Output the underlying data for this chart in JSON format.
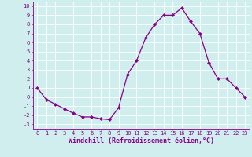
{
  "x": [
    0,
    1,
    2,
    3,
    4,
    5,
    6,
    7,
    8,
    9,
    10,
    11,
    12,
    13,
    14,
    15,
    16,
    17,
    18,
    19,
    20,
    21,
    22,
    23
  ],
  "y": [
    1,
    -0.3,
    -0.8,
    -1.3,
    -1.8,
    -2.2,
    -2.2,
    -2.4,
    -2.5,
    -1.2,
    2.5,
    4.0,
    6.5,
    8.0,
    9.0,
    9.0,
    9.8,
    8.3,
    7.0,
    3.8,
    2.0,
    2.0,
    1.0,
    0.0
  ],
  "line_color": "#880088",
  "marker": "D",
  "marker_size": 2.0,
  "linewidth": 0.9,
  "xlabel": "Windchill (Refroidissement éolien,°C)",
  "xlabel_fontsize": 6.0,
  "xlim": [
    -0.5,
    23.5
  ],
  "ylim": [
    -3.5,
    10.5
  ],
  "yticks": [
    -3,
    -2,
    -1,
    0,
    1,
    2,
    3,
    4,
    5,
    6,
    7,
    8,
    9,
    10
  ],
  "xticks": [
    0,
    1,
    2,
    3,
    4,
    5,
    6,
    7,
    8,
    9,
    10,
    11,
    12,
    13,
    14,
    15,
    16,
    17,
    18,
    19,
    20,
    21,
    22,
    23
  ],
  "background_color": "#d0eeee",
  "grid_color": "#b0d8d8",
  "tick_label_fontsize": 5.0,
  "tick_color": "#880088",
  "label_color": "#880088"
}
